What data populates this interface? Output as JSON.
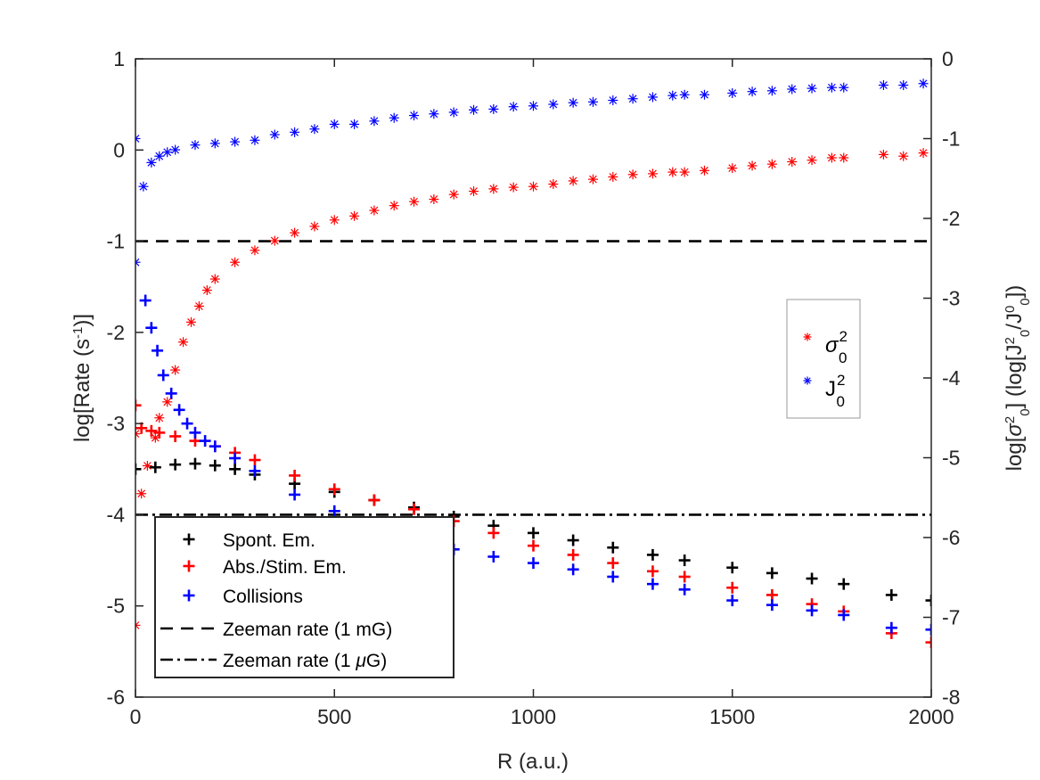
{
  "chart_data": {
    "type": "scatter",
    "xlabel": "R (a.u.)",
    "ylabel_left": "log[Rate (s^-1)]",
    "ylabel_right": "log[σ^2_0] (log[J^2_0/J^0_0])",
    "xlim": [
      0,
      2000
    ],
    "ylim_left": [
      -6,
      1
    ],
    "ylim_right": [
      -8,
      0
    ],
    "x_ticks": [
      0,
      500,
      1000,
      1500,
      2000
    ],
    "y_ticks_left": [
      1,
      0,
      -1,
      -2,
      -3,
      -4,
      -5,
      -6
    ],
    "y_ticks_right": [
      0,
      -1,
      -2,
      -3,
      -4,
      -5,
      -6,
      -7,
      -8
    ],
    "grid": false,
    "hlines": [
      {
        "name": "Zeeman rate (1 mG)",
        "y": -1,
        "style": "dashed"
      },
      {
        "name": "Zeeman rate (1 μG)",
        "y": -4,
        "style": "dashdot"
      }
    ],
    "legend_left": {
      "placement": "bottom-left",
      "entries": [
        {
          "label": "Spont. Em.",
          "marker": "plus",
          "color": "#000000"
        },
        {
          "label": "Abs./Stim. Em.",
          "marker": "plus",
          "color": "#ff0000"
        },
        {
          "label": "Collisions",
          "marker": "plus",
          "color": "#0000ff"
        },
        {
          "label": "Zeeman rate (1 mG)",
          "marker": "dashed",
          "color": "#000000"
        },
        {
          "label": "Zeeman rate (1 μG)",
          "marker": "dashdot",
          "color": "#000000"
        }
      ]
    },
    "legend_right": {
      "placement": "center-right",
      "entries": [
        {
          "base": "σ",
          "sup": "2",
          "sub": "0",
          "marker": "star",
          "color": "#ff0000"
        },
        {
          "base": "J",
          "sup": "2",
          "sub": "0",
          "marker": "star",
          "color": "#0000ff"
        }
      ]
    },
    "series": [
      {
        "name": "Spont. Em.",
        "axis": "left",
        "marker": "plus",
        "color": "#000000",
        "x": [
          0,
          50,
          100,
          150,
          200,
          250,
          300,
          400,
          500,
          600,
          700,
          800,
          900,
          1000,
          1100,
          1200,
          1300,
          1380,
          1500,
          1600,
          1700,
          1780,
          1900,
          2000
        ],
        "y": [
          -3.5,
          -3.48,
          -3.45,
          -3.44,
          -3.46,
          -3.5,
          -3.56,
          -3.66,
          -3.75,
          -3.84,
          -3.92,
          -4.02,
          -4.12,
          -4.2,
          -4.28,
          -4.36,
          -4.44,
          -4.5,
          -4.58,
          -4.64,
          -4.7,
          -4.76,
          -4.88,
          -4.94
        ]
      },
      {
        "name": "Abs./Stim. Em.",
        "axis": "left",
        "marker": "plus",
        "color": "#ff0000",
        "x": [
          0,
          15,
          40,
          60,
          100,
          150,
          200,
          250,
          300,
          400,
          500,
          600,
          700,
          800,
          900,
          1000,
          1100,
          1200,
          1300,
          1380,
          1500,
          1600,
          1700,
          1780,
          1900,
          2000
        ],
        "y": [
          -2.8,
          -3.05,
          -3.08,
          -3.1,
          -3.14,
          -3.19,
          -3.25,
          -3.32,
          -3.4,
          -3.57,
          -3.72,
          -3.84,
          -3.94,
          -4.07,
          -4.2,
          -4.34,
          -4.44,
          -4.53,
          -4.62,
          -4.68,
          -4.8,
          -4.88,
          -4.98,
          -5.06,
          -5.3,
          -5.4
        ]
      },
      {
        "name": "Collisions",
        "axis": "left",
        "marker": "plus",
        "color": "#0000ff",
        "x": [
          25,
          40,
          55,
          70,
          90,
          110,
          130,
          150,
          175,
          200,
          250,
          300,
          400,
          500,
          600,
          700,
          800,
          900,
          1000,
          1100,
          1200,
          1300,
          1380,
          1500,
          1600,
          1700,
          1780,
          1900,
          2000
        ],
        "y": [
          -1.65,
          -1.95,
          -2.2,
          -2.47,
          -2.67,
          -2.85,
          -3.0,
          -3.1,
          -3.19,
          -3.25,
          -3.38,
          -3.52,
          -3.78,
          -3.96,
          -4.12,
          -4.28,
          -4.38,
          -4.46,
          -4.53,
          -4.6,
          -4.68,
          -4.76,
          -4.82,
          -4.94,
          -4.99,
          -5.05,
          -5.1,
          -5.24,
          -5.26
        ]
      },
      {
        "name": "J^2_0",
        "axis": "right",
        "marker": "star",
        "color": "#0000ff",
        "x": [
          0,
          0,
          20,
          40,
          60,
          80,
          100,
          150,
          200,
          250,
          300,
          350,
          400,
          450,
          500,
          550,
          600,
          650,
          700,
          750,
          800,
          850,
          900,
          950,
          1000,
          1050,
          1100,
          1150,
          1200,
          1250,
          1300,
          1350,
          1380,
          1430,
          1500,
          1550,
          1600,
          1650,
          1700,
          1750,
          1780,
          1880,
          1930,
          1980
        ],
        "y": [
          -1.0,
          -2.55,
          -1.6,
          -1.3,
          -1.22,
          -1.17,
          -1.14,
          -1.08,
          -1.06,
          -1.04,
          -1.02,
          -0.95,
          -0.92,
          -0.88,
          -0.82,
          -0.82,
          -0.78,
          -0.74,
          -0.71,
          -0.69,
          -0.67,
          -0.64,
          -0.63,
          -0.6,
          -0.59,
          -0.57,
          -0.55,
          -0.54,
          -0.52,
          -0.5,
          -0.48,
          -0.46,
          -0.45,
          -0.45,
          -0.43,
          -0.41,
          -0.4,
          -0.38,
          -0.37,
          -0.36,
          -0.36,
          -0.33,
          -0.33,
          -0.31
        ]
      },
      {
        "name": "σ^2_0",
        "axis": "right",
        "marker": "star",
        "color": "#ff0000",
        "x": [
          0,
          0,
          15,
          30,
          50,
          60,
          80,
          100,
          120,
          140,
          160,
          180,
          200,
          250,
          300,
          350,
          400,
          450,
          500,
          550,
          600,
          650,
          700,
          750,
          800,
          850,
          900,
          950,
          1000,
          1050,
          1100,
          1150,
          1200,
          1250,
          1300,
          1350,
          1380,
          1430,
          1500,
          1550,
          1600,
          1650,
          1700,
          1750,
          1780,
          1880,
          1930,
          1980
        ],
        "y": [
          -7.1,
          -4.7,
          -5.45,
          -5.1,
          -4.75,
          -4.5,
          -4.3,
          -3.9,
          -3.55,
          -3.3,
          -3.1,
          -2.9,
          -2.76,
          -2.55,
          -2.4,
          -2.28,
          -2.18,
          -2.1,
          -2.02,
          -1.97,
          -1.9,
          -1.84,
          -1.79,
          -1.76,
          -1.7,
          -1.66,
          -1.63,
          -1.61,
          -1.6,
          -1.57,
          -1.53,
          -1.51,
          -1.48,
          -1.45,
          -1.44,
          -1.42,
          -1.42,
          -1.4,
          -1.37,
          -1.34,
          -1.32,
          -1.29,
          -1.27,
          -1.24,
          -1.24,
          -1.2,
          -1.22,
          -1.18
        ]
      }
    ]
  }
}
